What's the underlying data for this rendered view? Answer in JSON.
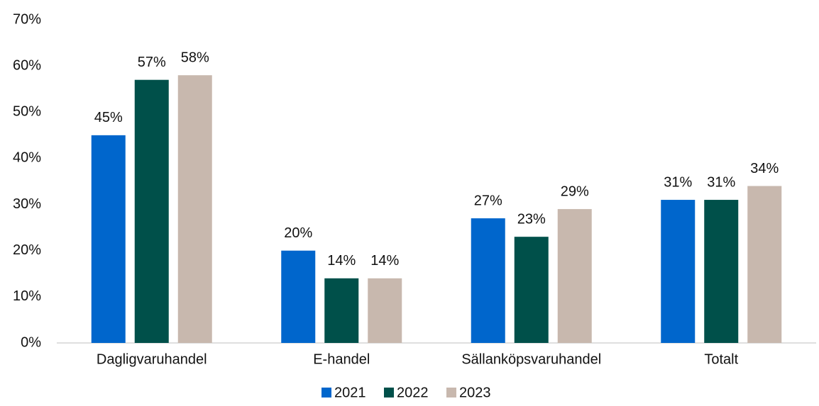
{
  "chart_data": {
    "type": "bar",
    "categories": [
      "Dagligvaruhandel",
      "E-handel",
      "Sällanköpsvaruhandel",
      "Totalt"
    ],
    "series": [
      {
        "name": "2021",
        "color": "#0066cc",
        "values": [
          45,
          20,
          27,
          31
        ],
        "value_labels": [
          "45%",
          "20%",
          "27%",
          "31%"
        ]
      },
      {
        "name": "2022",
        "color": "#00504a",
        "values": [
          57,
          14,
          23,
          31
        ],
        "value_labels": [
          "57%",
          "14%",
          "23%",
          "31%"
        ]
      },
      {
        "name": "2023",
        "color": "#c8b8ae",
        "values": [
          58,
          14,
          29,
          34
        ],
        "value_labels": [
          "58%",
          "14%",
          "29%",
          "34%"
        ]
      }
    ],
    "ylim": [
      0,
      70
    ],
    "yticks": [
      {
        "value": 0,
        "label": "0%"
      },
      {
        "value": 10,
        "label": "10%"
      },
      {
        "value": 20,
        "label": "20%"
      },
      {
        "value": 30,
        "label": "30%"
      },
      {
        "value": 40,
        "label": "40%"
      },
      {
        "value": 50,
        "label": "50%"
      },
      {
        "value": 60,
        "label": "60%"
      },
      {
        "value": 70,
        "label": "70%"
      }
    ],
    "grid": false,
    "legend": "bottom"
  }
}
